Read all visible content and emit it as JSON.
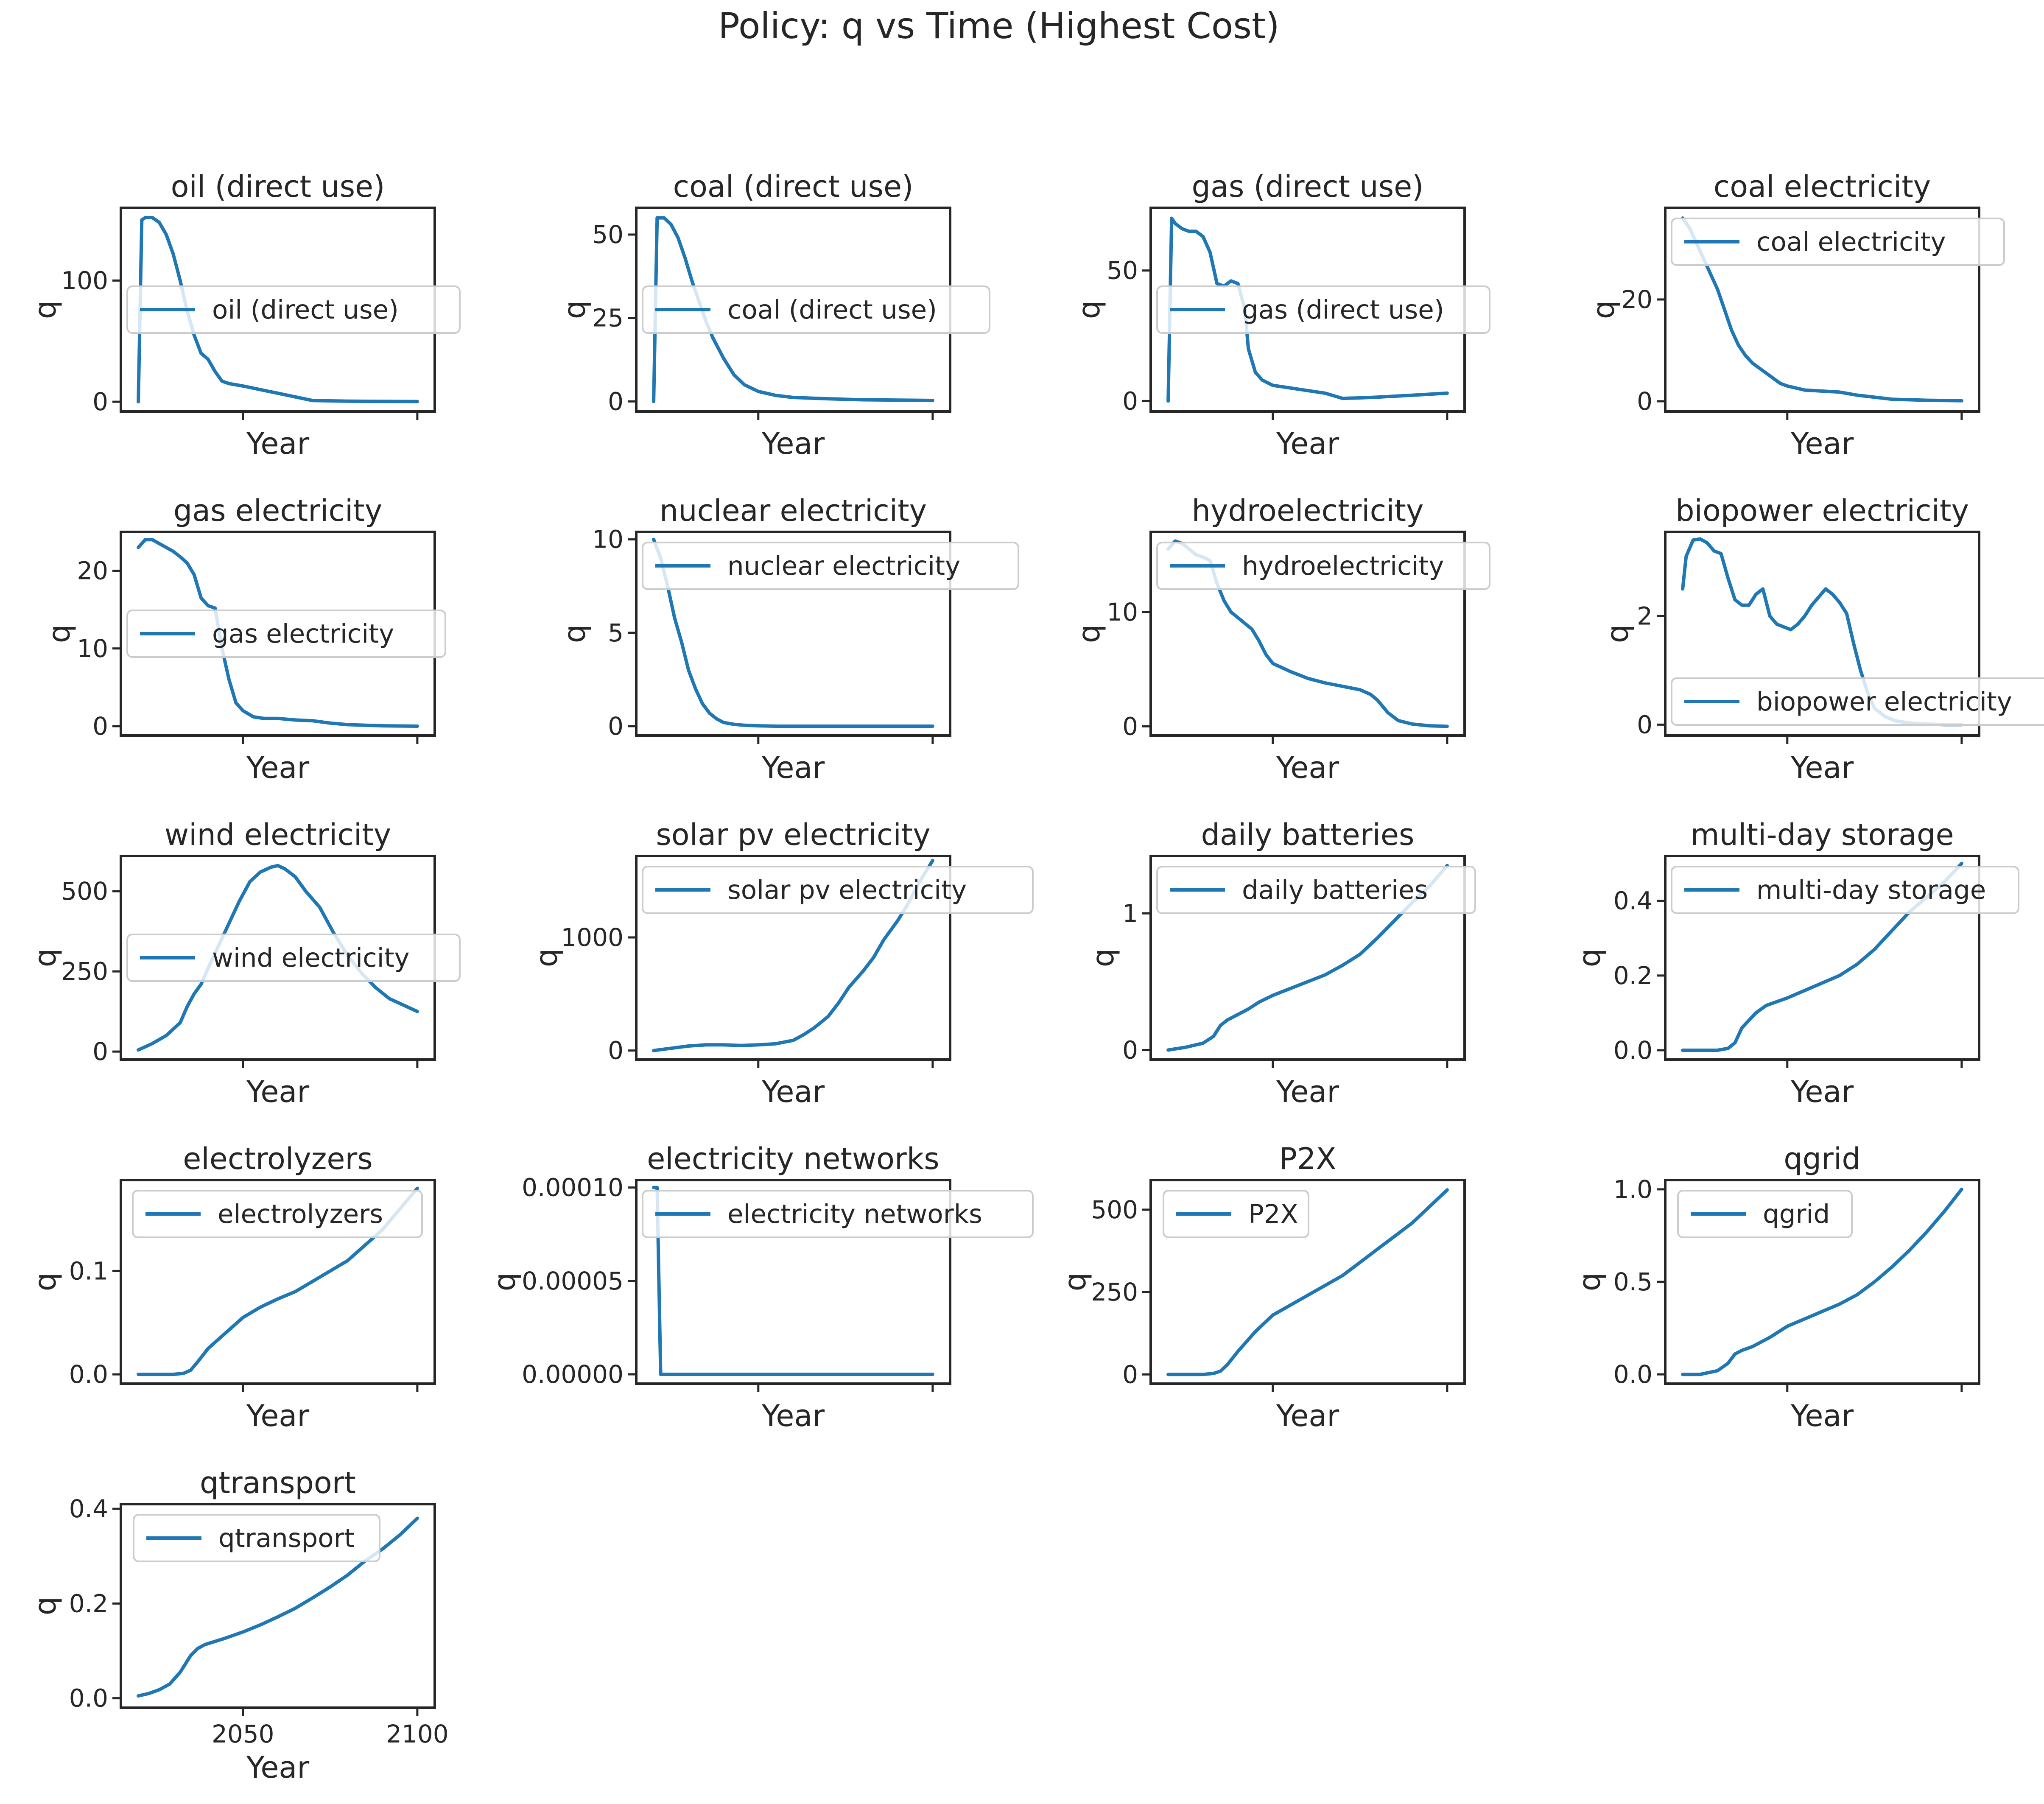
{
  "figure": {
    "title": "Policy: q vs Time (Highest Cost)"
  },
  "chart_data": [
    {
      "type": "line",
      "title": "oil (direct use)",
      "xlabel": "Year",
      "ylabel": "q",
      "legend": "oil (direct use)",
      "legend_loc": "center-right",
      "xlim": [
        2015,
        2105
      ],
      "ylim": [
        -8,
        160
      ],
      "yticks": [
        0,
        100
      ],
      "ytick_labels": [
        "0",
        "100"
      ],
      "xticks": [
        2050,
        2100
      ],
      "xtick_labels": [],
      "x": [
        2020,
        2021,
        2022,
        2024,
        2026,
        2028,
        2030,
        2032,
        2034,
        2036,
        2038,
        2040,
        2042,
        2044,
        2046,
        2050,
        2055,
        2060,
        2065,
        2070,
        2080,
        2090,
        2100
      ],
      "y": [
        0,
        150,
        152,
        152,
        148,
        138,
        122,
        100,
        75,
        55,
        40,
        35,
        25,
        17,
        15,
        13,
        10,
        7,
        4,
        1,
        0.5,
        0.3,
        0.2
      ]
    },
    {
      "type": "line",
      "title": "coal (direct use)",
      "xlabel": "Year",
      "ylabel": "q",
      "legend": "coal (direct use)",
      "legend_loc": "center-right",
      "xlim": [
        2015,
        2105
      ],
      "ylim": [
        -3,
        58
      ],
      "yticks": [
        0,
        25,
        50
      ],
      "ytick_labels": [
        "0",
        "25",
        "50"
      ],
      "xticks": [
        2050,
        2100
      ],
      "xtick_labels": [],
      "x": [
        2020,
        2021,
        2023,
        2025,
        2027,
        2029,
        2031,
        2033,
        2035,
        2037,
        2040,
        2043,
        2046,
        2050,
        2055,
        2060,
        2070,
        2080,
        2090,
        2100
      ],
      "y": [
        0,
        55,
        55,
        53,
        49,
        43,
        36,
        30,
        24,
        19,
        13,
        8,
        5,
        3,
        1.8,
        1.2,
        0.8,
        0.5,
        0.4,
        0.3
      ]
    },
    {
      "type": "line",
      "title": "gas (direct use)",
      "xlabel": "Year",
      "ylabel": "q",
      "legend": "gas (direct use)",
      "legend_loc": "center-right",
      "xlim": [
        2015,
        2105
      ],
      "ylim": [
        -4,
        74
      ],
      "yticks": [
        0,
        50
      ],
      "ytick_labels": [
        "0",
        "50"
      ],
      "xticks": [
        2050,
        2100
      ],
      "xtick_labels": [],
      "x": [
        2020,
        2021,
        2022,
        2024,
        2026,
        2028,
        2030,
        2032,
        2034,
        2036,
        2038,
        2040,
        2042,
        2043,
        2045,
        2047,
        2050,
        2055,
        2060,
        2065,
        2070,
        2075,
        2080,
        2090,
        2100
      ],
      "y": [
        0,
        70,
        68,
        66,
        65,
        65,
        63,
        57,
        45,
        44,
        46,
        45,
        35,
        20,
        11,
        8,
        6,
        5,
        4,
        3,
        1,
        1.2,
        1.5,
        2.2,
        3
      ]
    },
    {
      "type": "line",
      "title": "coal electricity",
      "xlabel": "Year",
      "ylabel": "q",
      "legend": "coal electricity",
      "legend_loc": "upper-right",
      "xlim": [
        2015,
        2105
      ],
      "ylim": [
        -2,
        38
      ],
      "yticks": [
        0,
        20
      ],
      "ytick_labels": [
        "0",
        "20"
      ],
      "xticks": [
        2050,
        2100
      ],
      "xtick_labels": [],
      "x": [
        2020,
        2022,
        2024,
        2026,
        2028,
        2030,
        2032,
        2034,
        2036,
        2038,
        2040,
        2042,
        2045,
        2048,
        2050,
        2055,
        2060,
        2065,
        2070,
        2075,
        2080,
        2090,
        2100
      ],
      "y": [
        36,
        34,
        31,
        28,
        25,
        22,
        18,
        14,
        11,
        9,
        7.5,
        6.5,
        5,
        3.5,
        3,
        2.2,
        2,
        1.8,
        1.2,
        0.8,
        0.4,
        0.2,
        0.1
      ]
    },
    {
      "type": "line",
      "title": "gas electricity",
      "xlabel": "Year",
      "ylabel": "q",
      "legend": "gas electricity",
      "legend_loc": "center-right",
      "xlim": [
        2015,
        2105
      ],
      "ylim": [
        -1.2,
        25
      ],
      "yticks": [
        0,
        10,
        20
      ],
      "ytick_labels": [
        "0",
        "10",
        "20"
      ],
      "xticks": [
        2050,
        2100
      ],
      "xtick_labels": [],
      "x": [
        2020,
        2022,
        2024,
        2026,
        2028,
        2030,
        2032,
        2034,
        2036,
        2038,
        2040,
        2042,
        2044,
        2046,
        2048,
        2050,
        2053,
        2056,
        2060,
        2065,
        2070,
        2075,
        2080,
        2090,
        2100
      ],
      "y": [
        23,
        24,
        24,
        23.5,
        23,
        22.5,
        21.8,
        21,
        19.5,
        16.5,
        15.5,
        15.2,
        10,
        6,
        3,
        2,
        1.2,
        1,
        1,
        0.8,
        0.7,
        0.4,
        0.2,
        0.05,
        0
      ]
    },
    {
      "type": "line",
      "title": "nuclear electricity",
      "xlabel": "Year",
      "ylabel": "q",
      "legend": "nuclear electricity",
      "legend_loc": "upper-right",
      "xlim": [
        2015,
        2105
      ],
      "ylim": [
        -0.5,
        10.4
      ],
      "yticks": [
        0,
        5,
        10
      ],
      "ytick_labels": [
        "0",
        "5",
        "10"
      ],
      "xticks": [
        2050,
        2100
      ],
      "xtick_labels": [],
      "x": [
        2020,
        2022,
        2024,
        2026,
        2028,
        2030,
        2032,
        2034,
        2036,
        2038,
        2040,
        2043,
        2046,
        2050,
        2055,
        2060,
        2070,
        2080,
        2090,
        2100
      ],
      "y": [
        10,
        9,
        7.5,
        5.8,
        4.5,
        3,
        2,
        1.2,
        0.7,
        0.4,
        0.2,
        0.1,
        0.05,
        0.02,
        0,
        0,
        0,
        0,
        0,
        0
      ]
    },
    {
      "type": "line",
      "title": "hydroelectricity",
      "xlabel": "Year",
      "ylabel": "q",
      "legend": "hydroelectricity",
      "legend_loc": "upper-right",
      "xlim": [
        2015,
        2105
      ],
      "ylim": [
        -0.8,
        17
      ],
      "yticks": [
        0,
        10
      ],
      "ytick_labels": [
        "0",
        "10"
      ],
      "xticks": [
        2050,
        2100
      ],
      "xtick_labels": [],
      "x": [
        2020,
        2022,
        2024,
        2026,
        2028,
        2030,
        2032,
        2034,
        2036,
        2038,
        2040,
        2042,
        2044,
        2046,
        2048,
        2050,
        2055,
        2060,
        2065,
        2070,
        2075,
        2078,
        2080,
        2083,
        2086,
        2090,
        2095,
        2100
      ],
      "y": [
        15.5,
        16.2,
        16,
        15.5,
        15,
        14.8,
        14.5,
        12.5,
        11,
        10,
        9.5,
        9,
        8.5,
        7.5,
        6.3,
        5.5,
        4.8,
        4.2,
        3.8,
        3.5,
        3.2,
        2.8,
        2.3,
        1.2,
        0.5,
        0.2,
        0.05,
        0
      ]
    },
    {
      "type": "line",
      "title": "biopower electricity",
      "xlabel": "Year",
      "ylabel": "q",
      "legend": "biopower electricity",
      "legend_loc": "lower-right",
      "xlim": [
        2015,
        2105
      ],
      "ylim": [
        -0.2,
        3.55
      ],
      "yticks": [
        0,
        2
      ],
      "ytick_labels": [
        "0",
        "2"
      ],
      "xticks": [
        2050,
        2100
      ],
      "xtick_labels": [],
      "x": [
        2020,
        2021,
        2023,
        2025,
        2027,
        2029,
        2031,
        2033,
        2035,
        2037,
        2039,
        2041,
        2043,
        2045,
        2047,
        2049,
        2051,
        2053,
        2055,
        2057,
        2059,
        2061,
        2063,
        2065,
        2067,
        2069,
        2071,
        2073,
        2075,
        2078,
        2081,
        2085,
        2090,
        2095,
        2100
      ],
      "y": [
        2.5,
        3.1,
        3.4,
        3.42,
        3.35,
        3.2,
        3.15,
        2.7,
        2.3,
        2.2,
        2.2,
        2.4,
        2.5,
        2.0,
        1.85,
        1.8,
        1.75,
        1.85,
        2.0,
        2.2,
        2.35,
        2.5,
        2.4,
        2.25,
        2.05,
        1.5,
        1.0,
        0.6,
        0.3,
        0.15,
        0.07,
        0.03,
        0.01,
        0,
        0
      ]
    },
    {
      "type": "line",
      "title": "wind electricity",
      "xlabel": "Year",
      "ylabel": "q",
      "legend": "wind electricity",
      "legend_loc": "center-right",
      "xlim": [
        2015,
        2105
      ],
      "ylim": [
        -25,
        610
      ],
      "yticks": [
        0,
        250,
        500
      ],
      "ytick_labels": [
        "0",
        "250",
        "500"
      ],
      "xticks": [
        2050,
        2100
      ],
      "xtick_labels": [],
      "x": [
        2020,
        2024,
        2028,
        2032,
        2034,
        2036,
        2038,
        2040,
        2043,
        2046,
        2049,
        2052,
        2055,
        2058,
        2060,
        2062,
        2065,
        2068,
        2072,
        2076,
        2080,
        2084,
        2088,
        2092,
        2096,
        2100
      ],
      "y": [
        5,
        25,
        50,
        90,
        140,
        180,
        210,
        260,
        330,
        400,
        470,
        530,
        560,
        575,
        580,
        570,
        545,
        500,
        450,
        370,
        300,
        245,
        200,
        165,
        145,
        125
      ]
    },
    {
      "type": "line",
      "title": "solar pv electricity",
      "xlabel": "Year",
      "ylabel": "q",
      "legend": "solar pv electricity",
      "legend_loc": "upper-right",
      "xlim": [
        2015,
        2105
      ],
      "ylim": [
        -80,
        1720
      ],
      "yticks": [
        0,
        1000
      ],
      "ytick_labels": [
        "0",
        "1000"
      ],
      "xticks": [
        2050,
        2100
      ],
      "xtick_labels": [],
      "x": [
        2020,
        2025,
        2030,
        2035,
        2040,
        2045,
        2050,
        2055,
        2060,
        2063,
        2066,
        2070,
        2073,
        2076,
        2080,
        2083,
        2086,
        2090,
        2093,
        2096,
        2100
      ],
      "y": [
        0,
        20,
        40,
        50,
        50,
        45,
        50,
        60,
        90,
        140,
        200,
        300,
        420,
        560,
        700,
        820,
        980,
        1150,
        1300,
        1480,
        1680
      ]
    },
    {
      "type": "line",
      "title": "daily batteries",
      "xlabel": "Year",
      "ylabel": "q",
      "legend": "daily batteries",
      "legend_loc": "upper-right",
      "xlim": [
        2015,
        2105
      ],
      "ylim": [
        -0.07,
        1.42
      ],
      "yticks": [
        0,
        1
      ],
      "ytick_labels": [
        "0",
        "1"
      ],
      "xticks": [
        2050,
        2100
      ],
      "xtick_labels": [],
      "x": [
        2020,
        2025,
        2030,
        2033,
        2035,
        2037,
        2040,
        2043,
        2046,
        2050,
        2055,
        2060,
        2065,
        2070,
        2075,
        2080,
        2085,
        2090,
        2095,
        2100
      ],
      "y": [
        0,
        0.02,
        0.05,
        0.1,
        0.18,
        0.22,
        0.26,
        0.3,
        0.35,
        0.4,
        0.45,
        0.5,
        0.55,
        0.62,
        0.7,
        0.82,
        0.95,
        1.08,
        1.2,
        1.35
      ]
    },
    {
      "type": "line",
      "title": "multi-day storage",
      "xlabel": "Year",
      "ylabel": "q",
      "legend": "multi-day storage",
      "legend_loc": "upper-right",
      "xlim": [
        2015,
        2105
      ],
      "ylim": [
        -0.025,
        0.52
      ],
      "yticks": [
        0,
        0.2,
        0.4
      ],
      "ytick_labels": [
        "0.0",
        "0.2",
        "0.4"
      ],
      "xticks": [
        2050,
        2100
      ],
      "xtick_labels": [],
      "x": [
        2020,
        2025,
        2030,
        2033,
        2035,
        2037,
        2039,
        2041,
        2044,
        2047,
        2050,
        2055,
        2060,
        2065,
        2070,
        2075,
        2080,
        2085,
        2090,
        2095,
        2100
      ],
      "y": [
        0,
        0,
        0,
        0.005,
        0.02,
        0.06,
        0.08,
        0.1,
        0.12,
        0.13,
        0.14,
        0.16,
        0.18,
        0.2,
        0.23,
        0.27,
        0.32,
        0.37,
        0.41,
        0.45,
        0.5
      ]
    },
    {
      "type": "line",
      "title": "electrolyzers",
      "xlabel": "Year",
      "ylabel": "q",
      "legend": "electrolyzers",
      "legend_loc": "upper-right",
      "xlim": [
        2015,
        2105
      ],
      "ylim": [
        -0.009,
        0.188
      ],
      "yticks": [
        0,
        0.1
      ],
      "ytick_labels": [
        "0.0",
        "0.1"
      ],
      "xticks": [
        2050,
        2100
      ],
      "xtick_labels": [],
      "x": [
        2020,
        2025,
        2030,
        2033,
        2035,
        2037,
        2040,
        2045,
        2050,
        2055,
        2060,
        2065,
        2070,
        2075,
        2080,
        2085,
        2090,
        2095,
        2100
      ],
      "y": [
        0,
        0,
        0,
        0.001,
        0.004,
        0.012,
        0.025,
        0.04,
        0.055,
        0.065,
        0.073,
        0.08,
        0.09,
        0.1,
        0.11,
        0.125,
        0.14,
        0.16,
        0.18
      ]
    },
    {
      "type": "line",
      "title": "electricity networks",
      "xlabel": "Year",
      "ylabel": "q",
      "legend": "electricity networks",
      "legend_loc": "upper-right",
      "xlim": [
        2015,
        2105
      ],
      "ylim": [
        -5e-06,
        0.000104
      ],
      "yticks": [
        0,
        5e-05,
        0.0001
      ],
      "ytick_labels": [
        "0.00000",
        "0.00005",
        "0.00010"
      ],
      "xticks": [
        2050,
        2100
      ],
      "xtick_labels": [],
      "x": [
        2020,
        2021,
        2022,
        2030,
        2040,
        2050,
        2060,
        2070,
        2080,
        2090,
        2100
      ],
      "y": [
        0.0001,
        0.0001,
        0,
        0,
        0,
        0,
        0,
        0,
        0,
        0,
        0
      ]
    },
    {
      "type": "line",
      "title": "P2X",
      "xlabel": "Year",
      "ylabel": "q",
      "legend": "P2X",
      "legend_loc": "upper-left",
      "xlim": [
        2015,
        2105
      ],
      "ylim": [
        -28,
        590
      ],
      "yticks": [
        0,
        250,
        500
      ],
      "ytick_labels": [
        "0",
        "250",
        "500"
      ],
      "xticks": [
        2050,
        2100
      ],
      "xtick_labels": [],
      "x": [
        2020,
        2025,
        2030,
        2033,
        2035,
        2037,
        2040,
        2045,
        2050,
        2055,
        2060,
        2065,
        2070,
        2075,
        2080,
        2085,
        2090,
        2095,
        2100
      ],
      "y": [
        0,
        0,
        0,
        3,
        10,
        30,
        70,
        130,
        180,
        210,
        240,
        270,
        300,
        340,
        380,
        420,
        460,
        510,
        560
      ]
    },
    {
      "type": "line",
      "title": "qgrid",
      "xlabel": "Year",
      "ylabel": "q",
      "legend": "qgrid",
      "legend_loc": "upper-left",
      "xlim": [
        2015,
        2105
      ],
      "ylim": [
        -0.05,
        1.05
      ],
      "yticks": [
        0,
        0.5,
        1
      ],
      "ytick_labels": [
        "0.0",
        "0.5",
        "1.0"
      ],
      "xticks": [
        2050,
        2100
      ],
      "xtick_labels": [],
      "x": [
        2020,
        2025,
        2030,
        2033,
        2035,
        2037,
        2040,
        2045,
        2050,
        2055,
        2060,
        2065,
        2070,
        2075,
        2080,
        2085,
        2090,
        2095,
        2100
      ],
      "y": [
        0,
        0,
        0.02,
        0.06,
        0.11,
        0.13,
        0.15,
        0.2,
        0.26,
        0.3,
        0.34,
        0.38,
        0.43,
        0.5,
        0.58,
        0.67,
        0.77,
        0.88,
        1.0
      ]
    },
    {
      "type": "line",
      "title": "qtransport",
      "xlabel": "Year",
      "ylabel": "q",
      "legend": "qtransport",
      "legend_loc": "upper-left",
      "xlim": [
        2015,
        2105
      ],
      "ylim": [
        -0.02,
        0.41
      ],
      "yticks": [
        0,
        0.2,
        0.4
      ],
      "ytick_labels": [
        "0.0",
        "0.2",
        "0.4"
      ],
      "xticks": [
        2050,
        2100
      ],
      "xtick_labels": [
        "2050",
        "2100"
      ],
      "x": [
        2020,
        2023,
        2026,
        2029,
        2032,
        2035,
        2037,
        2039,
        2042,
        2045,
        2050,
        2055,
        2060,
        2065,
        2070,
        2075,
        2080,
        2085,
        2090,
        2095,
        2100
      ],
      "y": [
        0.005,
        0.01,
        0.018,
        0.03,
        0.055,
        0.09,
        0.105,
        0.113,
        0.12,
        0.127,
        0.14,
        0.155,
        0.172,
        0.19,
        0.212,
        0.235,
        0.26,
        0.29,
        0.315,
        0.345,
        0.38
      ]
    }
  ]
}
